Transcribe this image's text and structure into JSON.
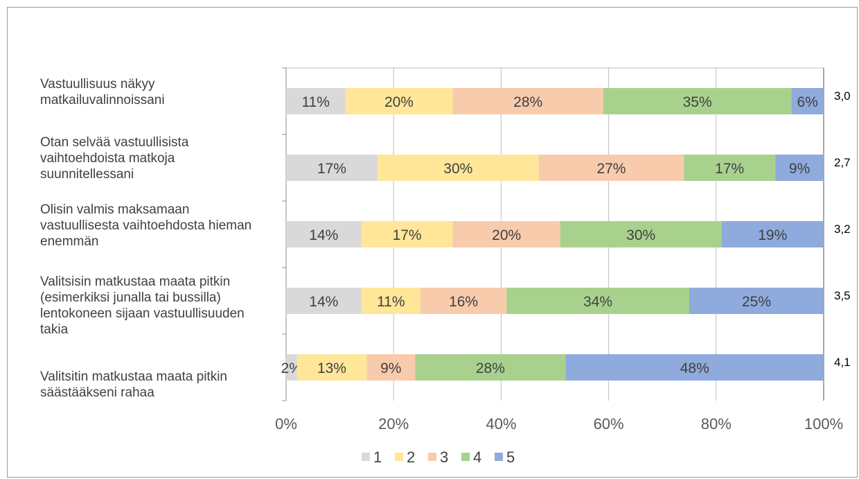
{
  "chart_data": {
    "type": "bar",
    "orientation": "horizontal",
    "stacked": true,
    "percent": true,
    "categories": [
      "Vastuullisuus näkyy\nmatkailuvalinnoissani",
      "Otan selvää vastuullisista\nvaihtoehdoista matkoja\nsuunnitellessani",
      "Olisin valmis maksamaan\nvastuullisesta vaihtoehdosta hieman\nenemmän",
      "Valitsisin matkustaa maata pitkin\n(esimerkiksi junalla tai bussilla)\nlentokoneen sijaan vastuullisuuden\ntakia",
      "Valitsitin matkustaa maata pitkin\nsäästääkseni rahaa"
    ],
    "series": [
      {
        "name": "1",
        "color": "#D9D9D9",
        "values": [
          11,
          17,
          14,
          14,
          2
        ]
      },
      {
        "name": "2",
        "color": "#FFE699",
        "values": [
          20,
          30,
          17,
          11,
          13
        ]
      },
      {
        "name": "3",
        "color": "#F8CBAD",
        "values": [
          28,
          27,
          20,
          16,
          9
        ]
      },
      {
        "name": "4",
        "color": "#A9D18E",
        "values": [
          35,
          17,
          30,
          34,
          28
        ]
      },
      {
        "name": "5",
        "color": "#8FAADC",
        "values": [
          6,
          9,
          19,
          25,
          48
        ]
      }
    ],
    "averages": [
      "3,0",
      "2,7",
      "3,2",
      "3,5",
      "4,1"
    ],
    "xticks": [
      "0%",
      "20%",
      "40%",
      "60%",
      "80%",
      "100%"
    ],
    "xlim": [
      0,
      100
    ],
    "grid": true,
    "legend": "bottom"
  }
}
